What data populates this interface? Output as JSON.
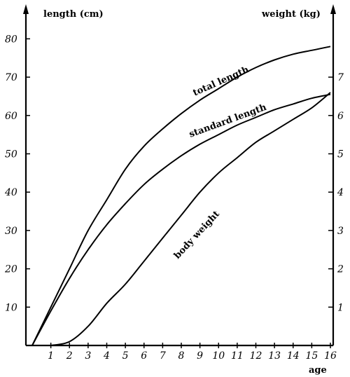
{
  "chart_data": {
    "type": "line",
    "left_axis_title": "length (cm)",
    "right_axis_title": "weight (kg)",
    "xlabel": "age",
    "x_ticks": [
      1,
      2,
      3,
      4,
      5,
      6,
      7,
      8,
      9,
      10,
      11,
      12,
      13,
      14,
      15,
      16
    ],
    "xlim": [
      0,
      16
    ],
    "left_y_ticks": [
      10,
      20,
      30,
      40,
      50,
      60,
      70,
      80
    ],
    "left_ylim": [
      0,
      86
    ],
    "right_y_ticks": [
      1,
      2,
      3,
      4,
      5,
      6,
      7
    ],
    "right_ylim": [
      0,
      8.3
    ],
    "grid": false,
    "legend": "none (curves labeled inline)",
    "series": [
      {
        "name": "total length",
        "axis": "left",
        "x": [
          0,
          1,
          2,
          3,
          4,
          5,
          6,
          7,
          8,
          9,
          10,
          11,
          12,
          13,
          14,
          15,
          16
        ],
        "y": [
          0,
          10,
          20,
          30,
          38,
          46,
          52,
          56.5,
          60.5,
          64,
          67,
          70,
          72.5,
          74.5,
          76,
          77,
          78
        ]
      },
      {
        "name": "standard length",
        "axis": "left",
        "x": [
          0,
          1,
          2,
          3,
          4,
          5,
          6,
          7,
          8,
          9,
          10,
          11,
          12,
          13,
          14,
          15,
          16
        ],
        "y": [
          0,
          9,
          17.5,
          25,
          31.5,
          37,
          42,
          46,
          49.5,
          52.5,
          55,
          57.5,
          59.5,
          61.5,
          63,
          64.5,
          65.5
        ]
      },
      {
        "name": "body weight",
        "axis": "right",
        "x": [
          1,
          2,
          3,
          4,
          5,
          6,
          7,
          8,
          9,
          10,
          11,
          12,
          13,
          14,
          15,
          16
        ],
        "y": [
          0,
          0.1,
          0.5,
          1.1,
          1.6,
          2.2,
          2.8,
          3.4,
          4.0,
          4.5,
          4.9,
          5.3,
          5.6,
          5.9,
          6.2,
          6.6
        ]
      }
    ]
  }
}
